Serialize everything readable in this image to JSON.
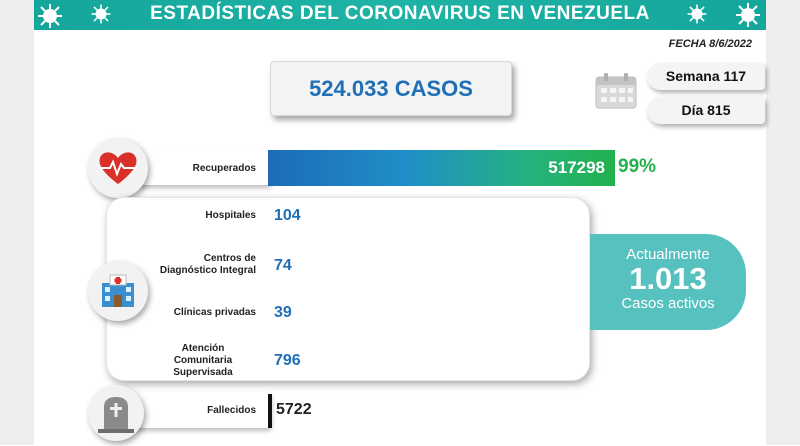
{
  "header": {
    "title": "ESTADÍSTICAS DEL CORONAVIRUS EN VENEZUELA"
  },
  "fecha": "FECHA 8/6/2022",
  "casos": "524.033 CASOS",
  "semana": "Semana 117",
  "dia": "Día 815",
  "recuperados": {
    "label": "Recuperados",
    "value": "517298",
    "percent": "99%"
  },
  "hospitalizacion": {
    "hospitales": {
      "label": "Hospitales",
      "value": "104"
    },
    "cdi": {
      "label_line1": "Centros de",
      "label_line2": "Diagnóstico Integral",
      "value": "74"
    },
    "clinicas": {
      "label": "Clínicas privadas",
      "value": "39"
    },
    "acs": {
      "label_line1": "Atención",
      "label_line2": "Comunitaria",
      "label_line3": "Supervisada",
      "value": "796"
    }
  },
  "activos": {
    "line1": "Actualmente",
    "value": "1.013",
    "line3": "Casos activos"
  },
  "fallecidos": {
    "label": "Fallecidos",
    "value": "5722"
  },
  "colors": {
    "teal": "#1fb3a6",
    "blue": "#1f6fb8",
    "green": "#22b14c",
    "heart_red": "#d9302a"
  },
  "icons": [
    "virus-icon",
    "calendar-icon",
    "heart-pulse-icon",
    "hospital-icon",
    "tombstone-icon"
  ]
}
